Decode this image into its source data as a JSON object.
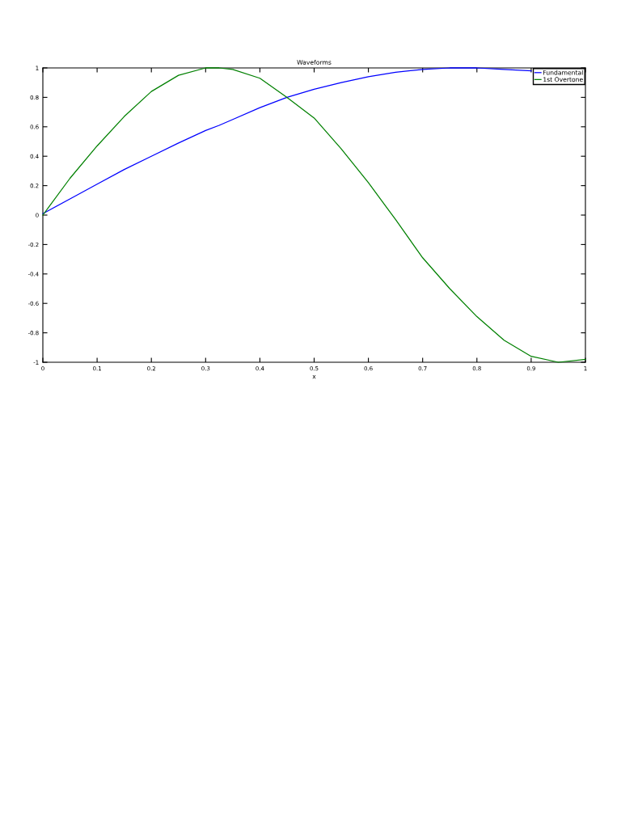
{
  "chart_data": {
    "type": "line",
    "title": "Waveforms",
    "xlabel": "x",
    "x": [
      0,
      0.05,
      0.1,
      0.15,
      0.2,
      0.25,
      0.3,
      0.325,
      0.35,
      0.4,
      0.45,
      0.5,
      0.55,
      0.6,
      0.65,
      0.7,
      0.75,
      0.8,
      0.85,
      0.9,
      0.95,
      1
    ],
    "series": [
      {
        "name": "Fundamental",
        "color": "#0000ff",
        "values": [
          0.01,
          0.11,
          0.21,
          0.31,
          0.4,
          0.49,
          0.575,
          0.61,
          0.65,
          0.73,
          0.8,
          0.855,
          0.9,
          0.94,
          0.97,
          0.99,
          1.0,
          1.0,
          0.99,
          0.98,
          null,
          null
        ]
      },
      {
        "name": "1st Overtone",
        "color": "#008000",
        "values": [
          0,
          0.25,
          0.47,
          0.67,
          0.84,
          0.95,
          1.0,
          1.0,
          0.99,
          0.93,
          0.8,
          0.66,
          0.45,
          0.22,
          -0.03,
          -0.29,
          -0.5,
          -0.69,
          -0.85,
          -0.96,
          -1.0,
          -0.98
        ]
      }
    ],
    "xlim": [
      0,
      1
    ],
    "ylim": [
      -1,
      1
    ],
    "xticks": [
      0,
      0.1,
      0.2,
      0.3,
      0.4,
      0.5,
      0.6,
      0.7,
      0.8,
      0.9,
      1
    ],
    "yticks": [
      -1,
      -0.8,
      -0.6,
      -0.4,
      -0.2,
      0,
      0.2,
      0.4,
      0.6,
      0.8,
      1
    ],
    "legend": "top right",
    "grid": false,
    "marker": "none",
    "line_style": "solid"
  }
}
